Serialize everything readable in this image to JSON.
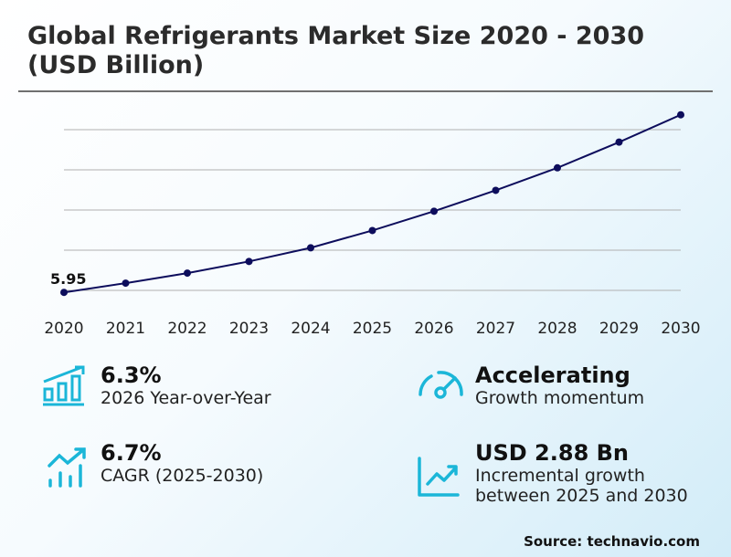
{
  "title_line1": "Global Refrigerants Market Size 2020 - 2030",
  "title_line2": "(USD Billion)",
  "chart_data": {
    "type": "line",
    "title": "Global Refrigerants Market Size 2020 - 2030 (USD Billion)",
    "categories": [
      "2020",
      "2021",
      "2022",
      "2023",
      "2024",
      "2025",
      "2026",
      "2027",
      "2028",
      "2029",
      "2030"
    ],
    "values": [
      5.95,
      6.18,
      6.43,
      6.72,
      7.06,
      7.49,
      7.97,
      8.49,
      9.05,
      9.69,
      10.37
    ],
    "data_labels": {
      "2020": "5.95"
    },
    "ylim": [
      6,
      10
    ],
    "gridlines": [
      6,
      7,
      8,
      9,
      10
    ],
    "grid": true,
    "y_tick_labels_shown": false,
    "line_color": "#0d0d5c"
  },
  "stats": [
    {
      "value": "6.3%",
      "label": "2026 Year-over-Year",
      "icon": "bar-chart-growth-icon"
    },
    {
      "value": "Accelerating",
      "label": "Growth momentum",
      "icon": "speedometer-icon"
    },
    {
      "value": "6.7%",
      "label": "CAGR (2025-2030)",
      "icon": "trend-up-bars-icon"
    },
    {
      "value": "USD 2.88 Bn",
      "label_line1": "Incremental growth",
      "label_line2": "between 2025 and 2030",
      "icon": "line-chart-up-icon"
    }
  ],
  "accent_color": "#1bb6d8",
  "source": "Source: technavio.com"
}
